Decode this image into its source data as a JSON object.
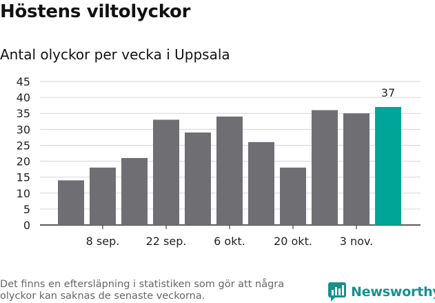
{
  "title": "Höstens viltolyckor",
  "subtitle": "Antal olyckor per vecka i Uppsala",
  "footnote": "Det finns en eftersläpning i statistiken som gör att några olyckor kan saknas de senaste veckorna.",
  "brand": {
    "name": "Newsworthy",
    "icon": "newsworthy-chart-logo-icon"
  },
  "colors": {
    "bar": "#6f6e72",
    "highlight": "#00a59a",
    "grid": "#d6d6d6",
    "axis": "#222222",
    "brand": "#1a8f8c"
  },
  "chart_data": {
    "type": "bar",
    "title": "",
    "xlabel": "",
    "ylabel": "",
    "ylim": [
      0,
      45
    ],
    "yticks": [
      0,
      5,
      10,
      15,
      20,
      25,
      30,
      35,
      40,
      45
    ],
    "grid": true,
    "categories": [
      "",
      "8 sep.",
      "",
      "22 sep.",
      "",
      "6 okt.",
      "",
      "20 okt.",
      "",
      "3 nov.",
      ""
    ],
    "values": [
      14,
      18,
      21,
      33,
      29,
      34,
      26,
      18,
      36,
      35,
      37
    ],
    "highlight_index": 10,
    "data_labels": [
      {
        "index": 10,
        "text": "37"
      }
    ]
  }
}
